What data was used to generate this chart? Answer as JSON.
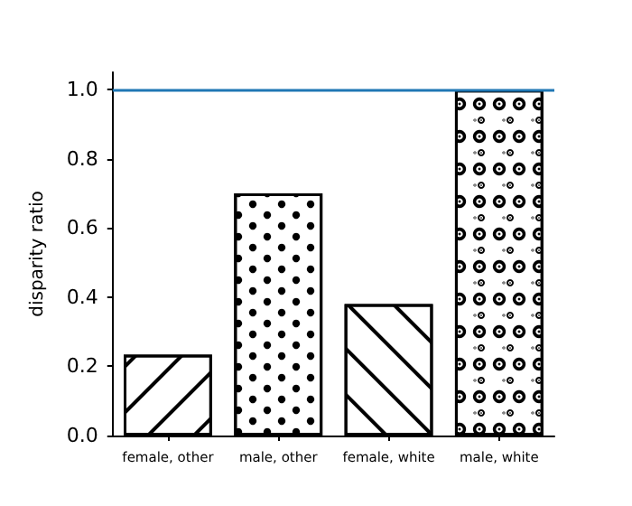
{
  "chart_data": {
    "type": "bar",
    "ylabel": "disparity ratio",
    "categories": [
      "female, other",
      "male, other",
      "female, white",
      "male, white"
    ],
    "values": [
      0.234,
      0.7,
      0.38,
      1.0
    ],
    "colors": [
      "#ffffff",
      "#ffffff",
      "#ffffff",
      "#ffffff"
    ],
    "ylim": [
      0,
      1.05
    ],
    "yticks": [
      {
        "value": 0,
        "label": "0.0"
      },
      {
        "value": 0.2,
        "label": "0.2"
      },
      {
        "value": 0.4,
        "label": "0.4"
      },
      {
        "value": 0.6,
        "label": "0.6"
      },
      {
        "value": 0.8,
        "label": "0.8"
      },
      {
        "value": 1.0,
        "label": "1.0"
      }
    ],
    "ref_lines": [
      {
        "axis": "y",
        "value": 1.0,
        "color": "#1f77b4"
      }
    ],
    "grid": false
  }
}
